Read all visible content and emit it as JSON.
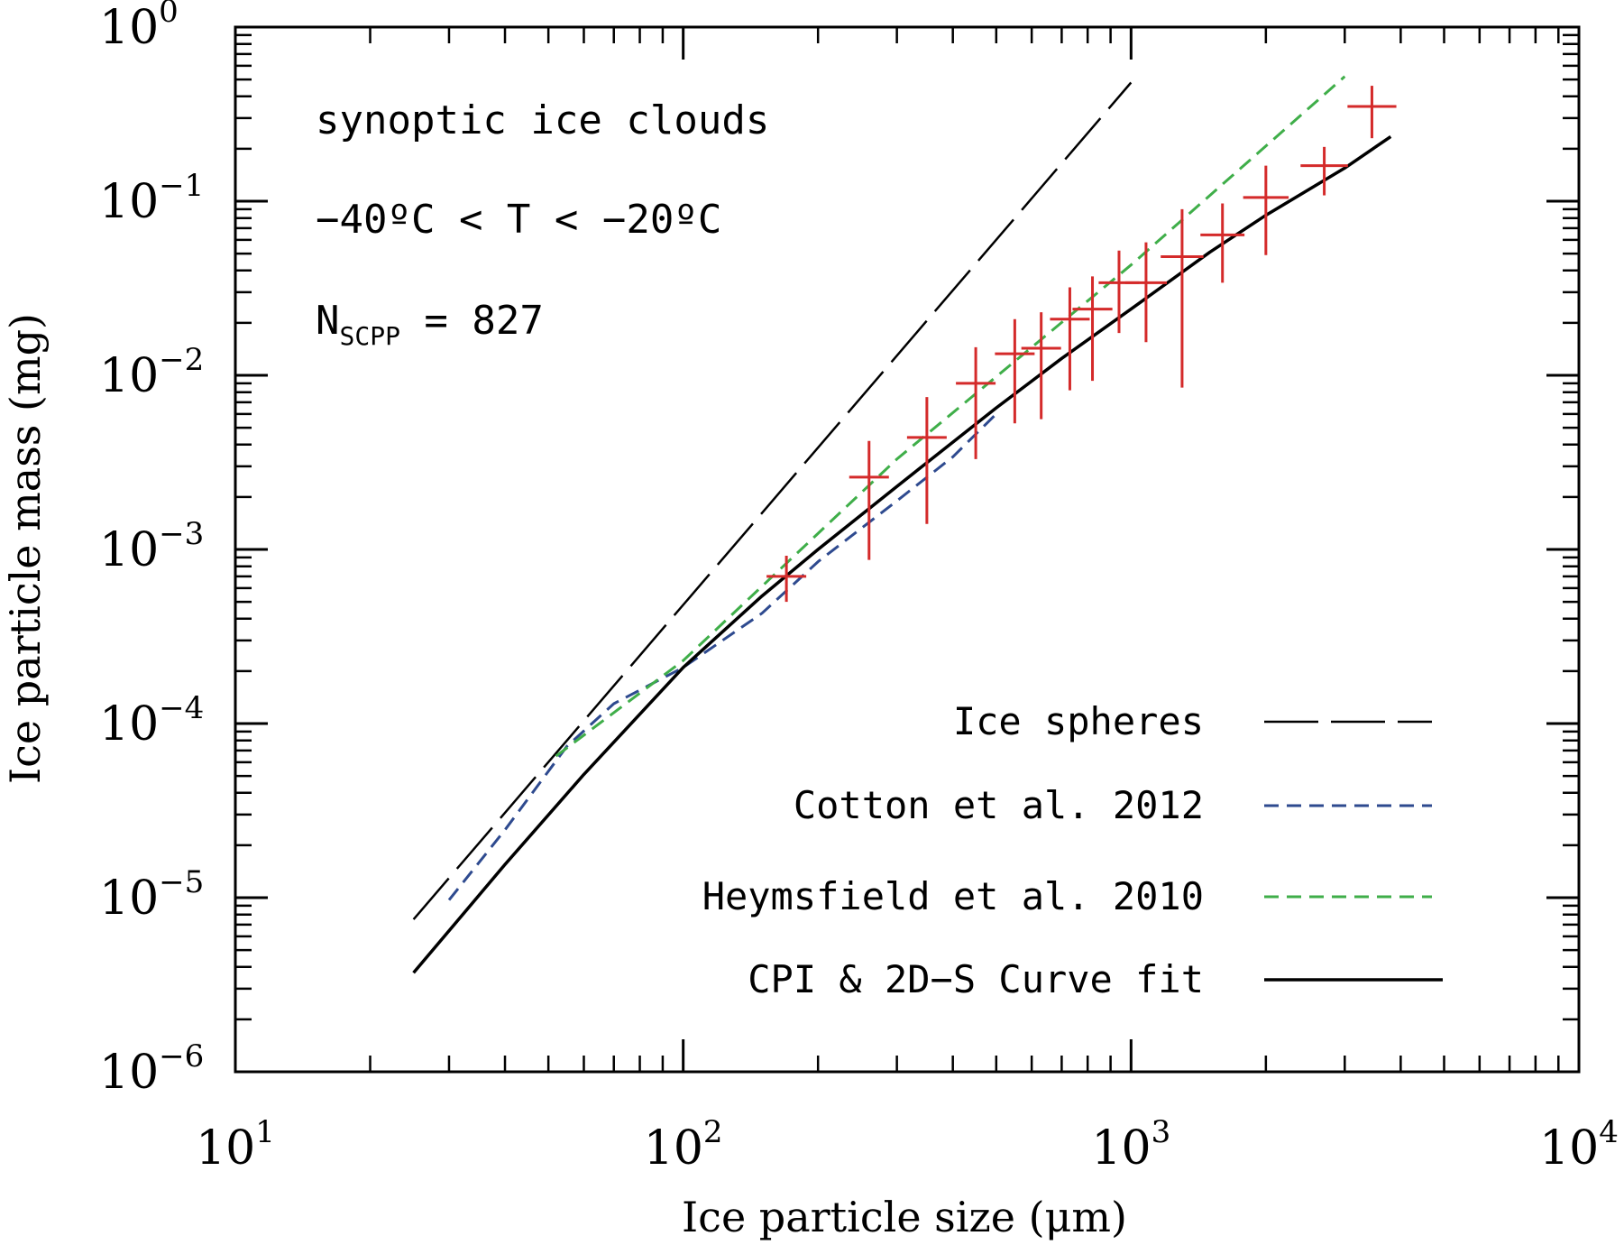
{
  "chart_data": {
    "type": "line",
    "xscale": "log",
    "yscale": "log",
    "xlim": [
      10,
      10000
    ],
    "ylim": [
      1e-06,
      1
    ],
    "xlabel": "Ice particle size  (μm)",
    "ylabel": "Ice particle mass  (mg)",
    "x_ticks": [
      {
        "base": "10",
        "exp": "1",
        "value": 10
      },
      {
        "base": "10",
        "exp": "2",
        "value": 100
      },
      {
        "base": "10",
        "exp": "3",
        "value": 1000
      },
      {
        "base": "10",
        "exp": "4",
        "value": 10000
      }
    ],
    "y_ticks": [
      {
        "base": "10",
        "exp": "−6",
        "value": 1e-06
      },
      {
        "base": "10",
        "exp": "−5",
        "value": 1e-05
      },
      {
        "base": "10",
        "exp": "−4",
        "value": 0.0001
      },
      {
        "base": "10",
        "exp": "−3",
        "value": 0.001
      },
      {
        "base": "10",
        "exp": "−2",
        "value": 0.01
      },
      {
        "base": "10",
        "exp": "−1",
        "value": 0.1
      },
      {
        "base": "10",
        "exp": "0",
        "value": 1
      }
    ],
    "annotations": {
      "line1": "synoptic ice clouds",
      "line2": "−40ºC < T < −20ºC",
      "n_label": "N",
      "n_sub": "SCPP",
      "n_value": " = 827"
    },
    "series": [
      {
        "name": "Ice spheres",
        "color": "#000000",
        "style": "long-dash",
        "points": [
          [
            25,
            7.5e-06
          ],
          [
            1000,
            0.48
          ]
        ]
      },
      {
        "name": "Cotton et al. 2012",
        "color": "#2e4a8f",
        "style": "short-dash",
        "points": [
          [
            30,
            9.7e-06
          ],
          [
            40,
            2.45e-05
          ],
          [
            55,
            7.4e-05
          ],
          [
            70,
            0.00013
          ],
          [
            100,
            0.00021
          ],
          [
            150,
            0.00043
          ],
          [
            200,
            0.00085
          ],
          [
            300,
            0.0019
          ],
          [
            400,
            0.0034
          ],
          [
            500,
            0.006
          ]
        ]
      },
      {
        "name": "Heymsfield et al. 2010",
        "color": "#3fae49",
        "style": "short-dash",
        "points": [
          [
            52,
            6.5e-05
          ],
          [
            100,
            0.00023
          ],
          [
            300,
            0.0033
          ],
          [
            1000,
            0.043
          ],
          [
            3000,
            0.52
          ]
        ]
      },
      {
        "name": "CPI & 2D−S Curve fit",
        "color": "#000000",
        "style": "solid",
        "points": [
          [
            25,
            3.7e-06
          ],
          [
            40,
            1.55e-05
          ],
          [
            60,
            5.1e-05
          ],
          [
            100,
            0.00021
          ],
          [
            150,
            0.00054
          ],
          [
            200,
            0.001
          ],
          [
            300,
            0.0023
          ],
          [
            500,
            0.0065
          ],
          [
            700,
            0.0125
          ],
          [
            1000,
            0.024
          ],
          [
            1500,
            0.051
          ],
          [
            2000,
            0.083
          ],
          [
            3000,
            0.155
          ],
          [
            3800,
            0.235
          ]
        ]
      }
    ],
    "measurements": {
      "name": "measurements",
      "color": "#d42a2a",
      "points": [
        {
          "x": 170,
          "y": 0.0007,
          "ylo": 0.0005,
          "yhi": 0.00092
        },
        {
          "x": 260,
          "y": 0.0026,
          "ylo": 0.00087,
          "yhi": 0.0042
        },
        {
          "x": 350,
          "y": 0.0044,
          "ylo": 0.0014,
          "yhi": 0.0075
        },
        {
          "x": 450,
          "y": 0.009,
          "ylo": 0.0033,
          "yhi": 0.0145
        },
        {
          "x": 550,
          "y": 0.0133,
          "ylo": 0.0053,
          "yhi": 0.021
        },
        {
          "x": 630,
          "y": 0.0143,
          "ylo": 0.0056,
          "yhi": 0.023
        },
        {
          "x": 730,
          "y": 0.021,
          "ylo": 0.0082,
          "yhi": 0.032
        },
        {
          "x": 820,
          "y": 0.024,
          "ylo": 0.0093,
          "yhi": 0.037
        },
        {
          "x": 940,
          "y": 0.034,
          "ylo": 0.0175,
          "yhi": 0.052
        },
        {
          "x": 1080,
          "y": 0.034,
          "ylo": 0.0155,
          "yhi": 0.058
        },
        {
          "x": 1300,
          "y": 0.048,
          "ylo": 0.0085,
          "yhi": 0.09
        },
        {
          "x": 1600,
          "y": 0.064,
          "ylo": 0.034,
          "yhi": 0.097
        },
        {
          "x": 2000,
          "y": 0.105,
          "ylo": 0.049,
          "yhi": 0.16
        },
        {
          "x": 2700,
          "y": 0.16,
          "ylo": 0.108,
          "yhi": 0.205
        },
        {
          "x": 3450,
          "y": 0.35,
          "ylo": 0.23,
          "yhi": 0.46
        }
      ]
    }
  }
}
